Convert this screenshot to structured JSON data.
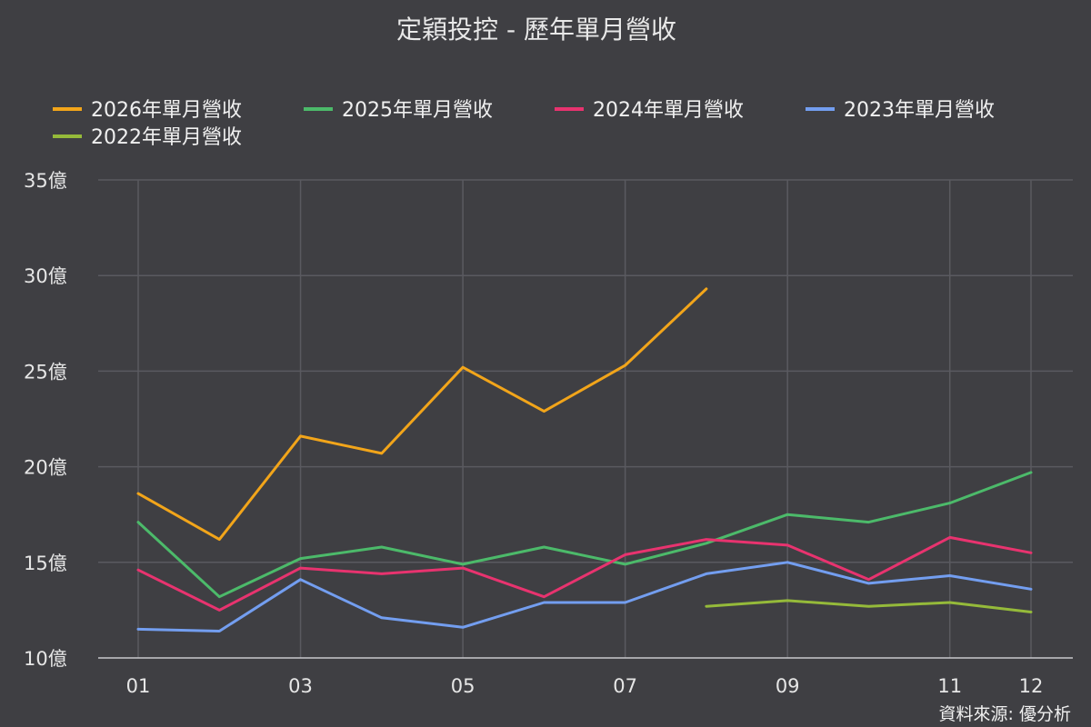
{
  "chart_data": {
    "type": "line",
    "title": "定穎投控 - 歷年單月營收",
    "source": "資料來源: 優分析",
    "x_tick_labels": [
      "01",
      "03",
      "05",
      "07",
      "09",
      "11",
      "12"
    ],
    "y_tick_labels": [
      "35億",
      "30億",
      "25億",
      "20億",
      "15億",
      "10億"
    ],
    "ylim": [
      10,
      35
    ],
    "y_ticks": [
      10,
      15,
      20,
      25,
      30,
      35
    ],
    "x": [
      1,
      2,
      3,
      4,
      5,
      6,
      7,
      8,
      9,
      10,
      11,
      12
    ],
    "x_ticks": [
      1,
      3,
      5,
      7,
      9,
      11,
      12
    ],
    "grid": true,
    "legend_position": "top",
    "series": [
      {
        "name": "2026年單月營收",
        "color": "#f2a51a",
        "values": [
          18.6,
          16.2,
          21.6,
          20.7,
          25.2,
          22.9,
          25.3,
          29.3,
          null,
          null,
          null,
          null
        ]
      },
      {
        "name": "2025年單月營收",
        "color": "#4cba6a",
        "values": [
          17.1,
          13.2,
          15.2,
          15.8,
          14.9,
          15.8,
          14.9,
          16.0,
          17.5,
          17.1,
          18.1,
          19.7
        ]
      },
      {
        "name": "2024年單月營收",
        "color": "#e8336f",
        "values": [
          14.6,
          12.5,
          14.7,
          14.4,
          14.7,
          13.2,
          15.4,
          16.2,
          15.9,
          14.1,
          16.3,
          15.5
        ]
      },
      {
        "name": "2023年單月營收",
        "color": "#739ef0",
        "values": [
          11.5,
          11.4,
          14.1,
          12.1,
          11.6,
          12.9,
          12.9,
          14.4,
          15.0,
          13.9,
          14.3,
          13.6
        ]
      },
      {
        "name": "2022年單月營收",
        "color": "#95ba3a",
        "values": [
          null,
          null,
          null,
          null,
          null,
          null,
          null,
          12.7,
          13.0,
          12.7,
          12.9,
          12.4
        ]
      }
    ]
  }
}
